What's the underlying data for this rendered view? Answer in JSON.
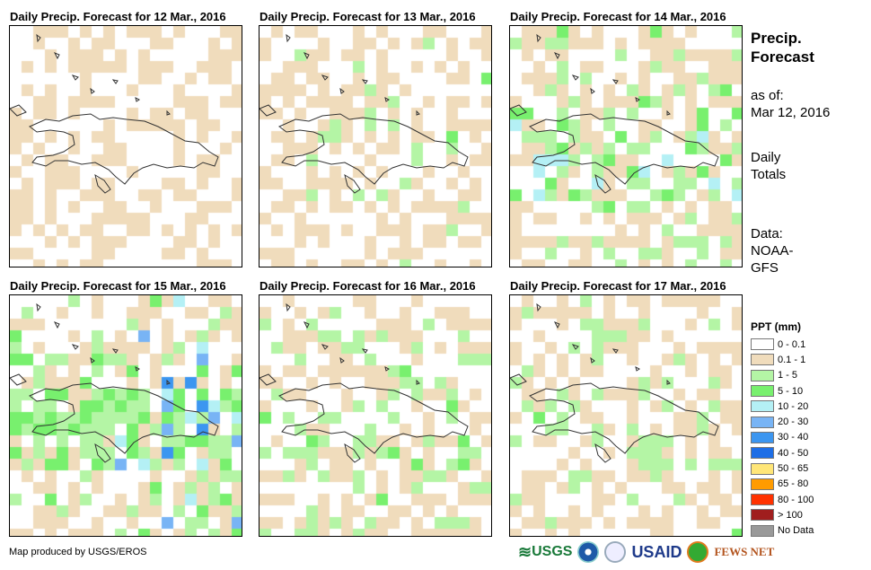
{
  "panels": [
    {
      "title": "Daily Precip. Forecast for 12 Mar., 2016"
    },
    {
      "title": "Daily Precip. Forecast for 13 Mar., 2016"
    },
    {
      "title": "Daily Precip. Forecast for 14 Mar., 2016"
    },
    {
      "title": "Daily Precip. Forecast for 15 Mar., 2016"
    },
    {
      "title": "Daily Precip. Forecast for 16 Mar., 2016"
    },
    {
      "title": "Daily Precip. Forecast for 17 Mar., 2016"
    }
  ],
  "side": {
    "heading1": "Precip.",
    "heading2": "Forecast",
    "asof_label": "as of:",
    "asof_date": "Mar 12, 2016",
    "daily1": "Daily",
    "daily2": "Totals",
    "data1": "Data:",
    "data2": "NOAA-",
    "data3": "GFS"
  },
  "legend": {
    "title": "PPT (mm)",
    "items": [
      {
        "label": "0 - 0.1",
        "color": "#ffffff"
      },
      {
        "label": "0.1 - 1",
        "color": "#f0dcbc"
      },
      {
        "label": "1 - 5",
        "color": "#b4f5a5"
      },
      {
        "label": "5 - 10",
        "color": "#78f06e"
      },
      {
        "label": "10 - 20",
        "color": "#b4f0f5"
      },
      {
        "label": "20 - 30",
        "color": "#78b4f5"
      },
      {
        "label": "30 - 40",
        "color": "#3c96f0"
      },
      {
        "label": "40 - 50",
        "color": "#1e6ee6"
      },
      {
        "label": "50 - 65",
        "color": "#ffe678"
      },
      {
        "label": "65 - 80",
        "color": "#ff9b00"
      },
      {
        "label": "80 - 100",
        "color": "#ff3200"
      },
      {
        "label": "> 100",
        "color": "#a01e1e"
      },
      {
        "label": "No Data",
        "color": "#999999"
      }
    ]
  },
  "credit": "Map produced by USGS/EROS",
  "logos": {
    "usgs": "USGS",
    "usaid": "USAID",
    "fews": "FEWS NET"
  }
}
